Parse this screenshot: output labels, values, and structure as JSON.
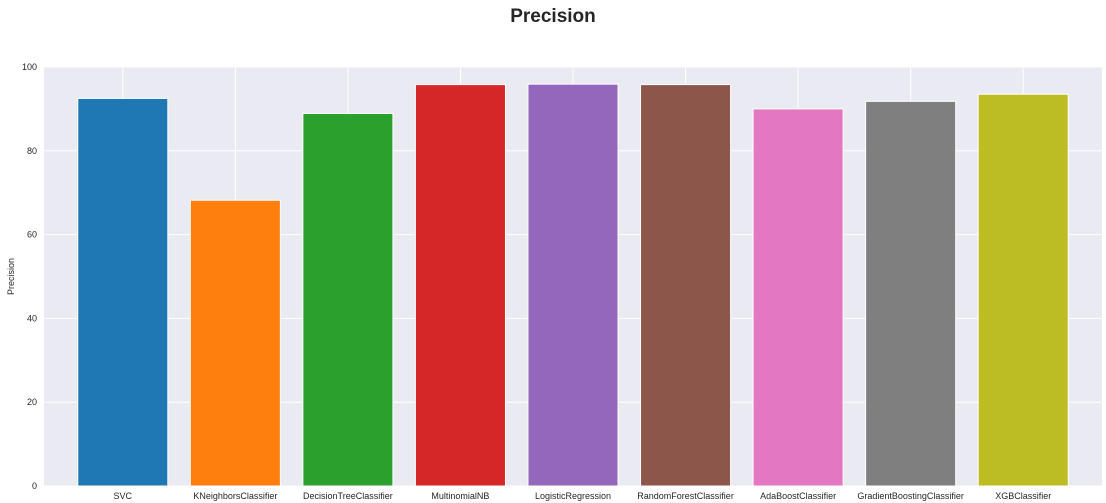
{
  "chart_data": {
    "type": "bar",
    "title": "Precision",
    "xlabel": "",
    "ylabel": "Precision",
    "ylim": [
      0,
      100
    ],
    "yticks": [
      0,
      20,
      40,
      60,
      80,
      100
    ],
    "grid": true,
    "categories": [
      "SVC",
      "KNeighborsClassifier",
      "DecisionTreeClassifier",
      "MultinomialNB",
      "LogisticRegression",
      "RandomForestClassifier",
      "AdaBoostClassifier",
      "GradientBoostingClassifier",
      "XGBClassifier"
    ],
    "values": [
      92.5,
      68.2,
      88.9,
      95.8,
      95.9,
      95.8,
      90.0,
      91.8,
      93.5
    ],
    "colors": [
      "#1f77b4",
      "#ff7f0e",
      "#2ca02c",
      "#d62728",
      "#9467bd",
      "#8c564b",
      "#e377c2",
      "#7f7f7f",
      "#bcbd22"
    ],
    "background": "#eaeaf2",
    "grid_color": "#ffffff"
  }
}
